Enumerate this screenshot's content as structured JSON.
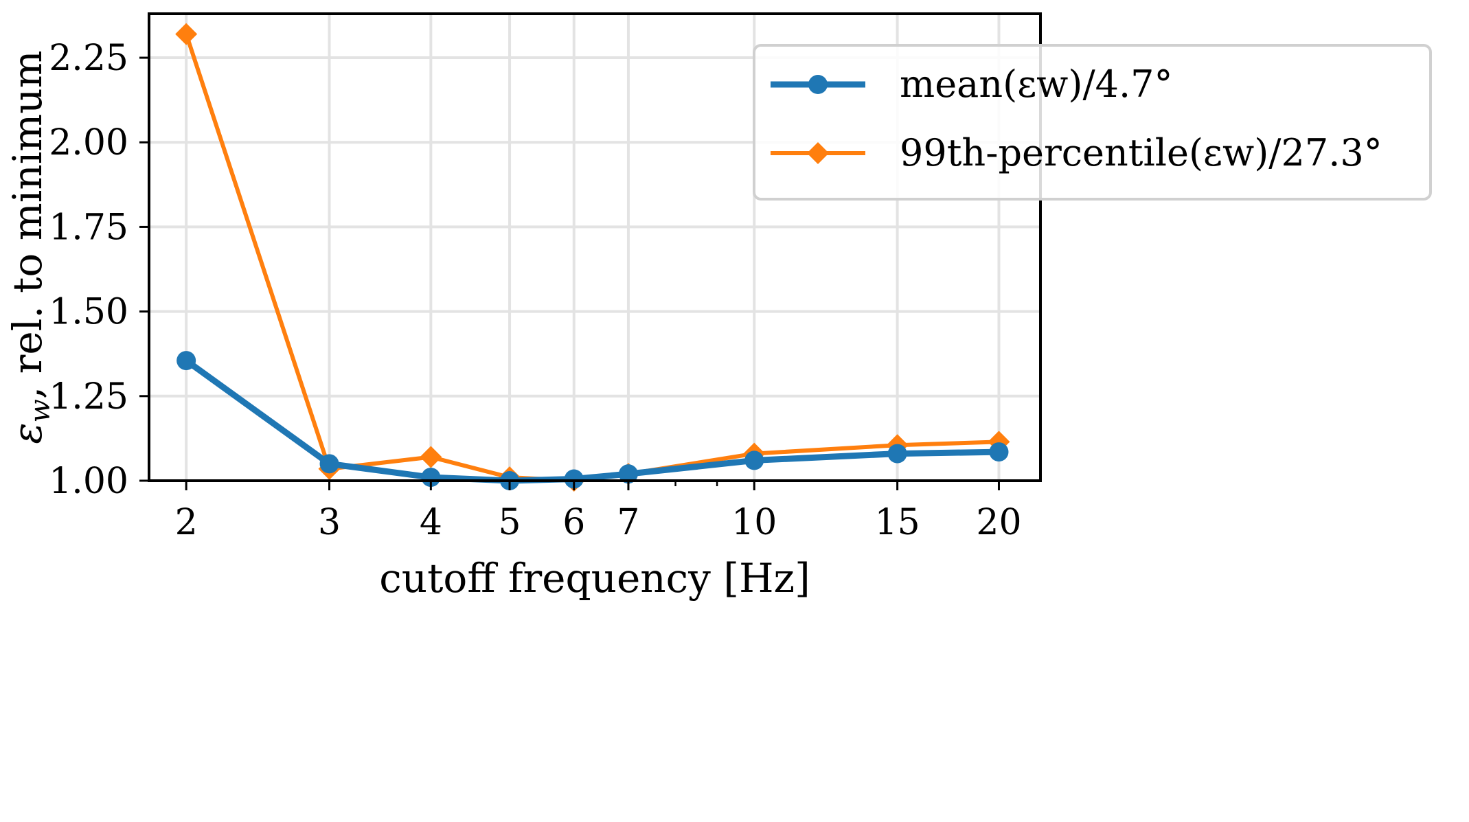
{
  "chart_data": {
    "type": "line",
    "title": "",
    "xlabel": "cutoff frequency [Hz]",
    "ylabel": "εw, rel. to minimum",
    "xscale": "log",
    "x": [
      2,
      3,
      4,
      5,
      6,
      7,
      10,
      15,
      20
    ],
    "xticks": [
      2,
      3,
      4,
      5,
      6,
      7,
      10,
      15,
      20
    ],
    "xtick_labels": [
      "2",
      "3",
      "4",
      "5",
      "6",
      "7",
      "10",
      "15",
      "20"
    ],
    "xlim": [
      1.8,
      22.5
    ],
    "ylim": [
      1.0,
      2.38
    ],
    "yticks": [
      1.0,
      1.25,
      1.5,
      1.75,
      2.0,
      2.25
    ],
    "ytick_labels": [
      "1.00",
      "1.25",
      "1.50",
      "1.75",
      "2.00",
      "2.25"
    ],
    "grid": true,
    "legend_position": "top-right",
    "series": [
      {
        "name": "mean(εw)/4.7°",
        "color": "#1f77b4",
        "marker": "circle",
        "values": [
          1.355,
          1.05,
          1.01,
          1.0,
          1.005,
          1.02,
          1.06,
          1.08,
          1.085
        ]
      },
      {
        "name": "99th-percentile(εw)/27.3°",
        "color": "#ff7f0e",
        "marker": "diamond",
        "values": [
          2.32,
          1.035,
          1.07,
          1.01,
          1.0,
          1.02,
          1.08,
          1.105,
          1.115
        ]
      }
    ]
  }
}
